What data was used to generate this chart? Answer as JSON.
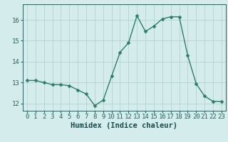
{
  "x": [
    0,
    1,
    2,
    3,
    4,
    5,
    6,
    7,
    8,
    9,
    10,
    11,
    12,
    13,
    14,
    15,
    16,
    17,
    18,
    19,
    20,
    21,
    22,
    23
  ],
  "y": [
    13.1,
    13.1,
    13.0,
    12.9,
    12.9,
    12.85,
    12.65,
    12.45,
    11.9,
    12.15,
    13.3,
    14.45,
    14.9,
    16.2,
    15.45,
    15.7,
    16.05,
    16.15,
    16.15,
    14.3,
    12.95,
    12.35,
    12.1,
    12.1
  ],
  "line_color": "#2d7d6e",
  "marker_color": "#2d7d6e",
  "bg_color": "#d4edec",
  "grid_color": "#b0cccc",
  "xlabel": "Humidex (Indice chaleur)",
  "ylim_min": 11.65,
  "ylim_max": 16.75,
  "xlim_min": -0.5,
  "xlim_max": 23.5,
  "yticks": [
    12,
    13,
    14,
    15,
    16
  ],
  "xticks": [
    0,
    1,
    2,
    3,
    4,
    5,
    6,
    7,
    8,
    9,
    10,
    11,
    12,
    13,
    14,
    15,
    16,
    17,
    18,
    19,
    20,
    21,
    22,
    23
  ],
  "tick_label_color": "#2d6060",
  "xlabel_color": "#1a4a4a",
  "xlabel_fontsize": 7.5,
  "tick_fontsize": 6.5,
  "line_width": 1.0,
  "marker_size": 2.5
}
